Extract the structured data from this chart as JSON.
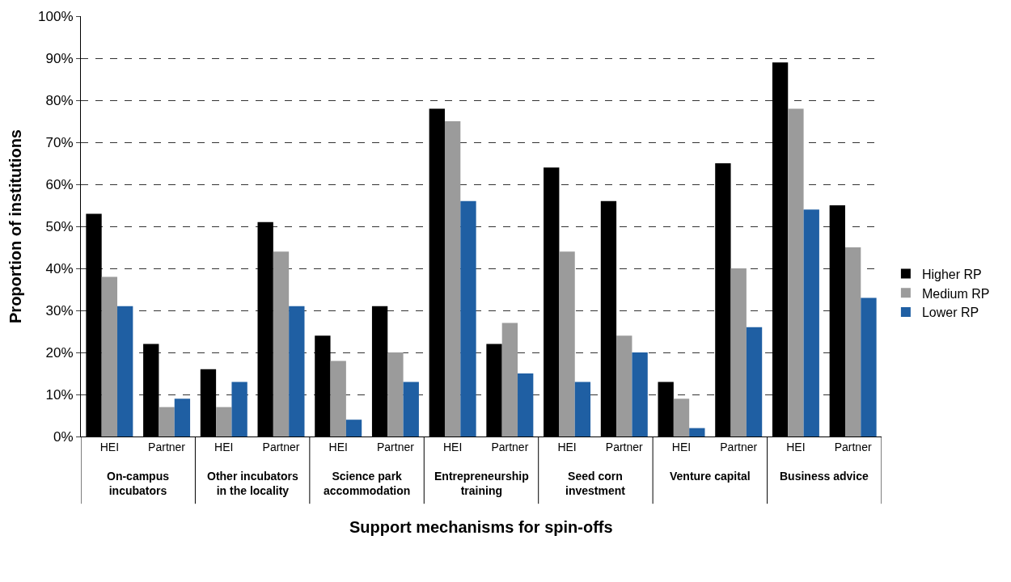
{
  "chart_data": {
    "type": "bar",
    "xlabel": "Support mechanisms for spin-offs",
    "ylabel": "Proportion of institutions",
    "categories": [
      "HEI",
      "Partner",
      "HEI",
      "Partner",
      "HEI",
      "Partner",
      "HEI",
      "Partner",
      "HEI",
      "Partner",
      "HEI",
      "Partner",
      "HEI",
      "Partner"
    ],
    "annotations": [
      "On-campus\nincubators",
      "Other incubators\nin the locality",
      "Science park\naccommodation",
      "Entrepreneurship\ntraining",
      "Seed corn\ninvestment",
      "Venture capital",
      "Business advice"
    ],
    "series": [
      {
        "name": "Higher RP",
        "color": "#000000",
        "values": [
          53,
          22,
          16,
          51,
          24,
          31,
          78,
          22,
          64,
          56,
          13,
          65,
          89,
          55
        ]
      },
      {
        "name": "Medium RP",
        "color": "#9b9b9b",
        "values": [
          38,
          7,
          7,
          44,
          18,
          20,
          75,
          27,
          44,
          24,
          9,
          40,
          78,
          45
        ]
      },
      {
        "name": "Lower RP",
        "color": "#1f5fa3",
        "values": [
          31,
          9,
          13,
          31,
          4,
          13,
          56,
          15,
          13,
          20,
          2,
          26,
          54,
          33
        ]
      }
    ],
    "ylim": [
      0,
      100
    ],
    "yticks": [
      {
        "value": 0,
        "label": "0%"
      },
      {
        "value": 10,
        "label": "10%"
      },
      {
        "value": 20,
        "label": "20%"
      },
      {
        "value": 30,
        "label": "30%"
      },
      {
        "value": 40,
        "label": "40%"
      },
      {
        "value": 50,
        "label": "50%"
      },
      {
        "value": 60,
        "label": "60%"
      },
      {
        "value": 70,
        "label": "70%"
      },
      {
        "value": 80,
        "label": "80%"
      },
      {
        "value": 90,
        "label": "90%"
      },
      {
        "value": 100,
        "label": "100%"
      }
    ],
    "grid": "y",
    "legend": "right"
  }
}
